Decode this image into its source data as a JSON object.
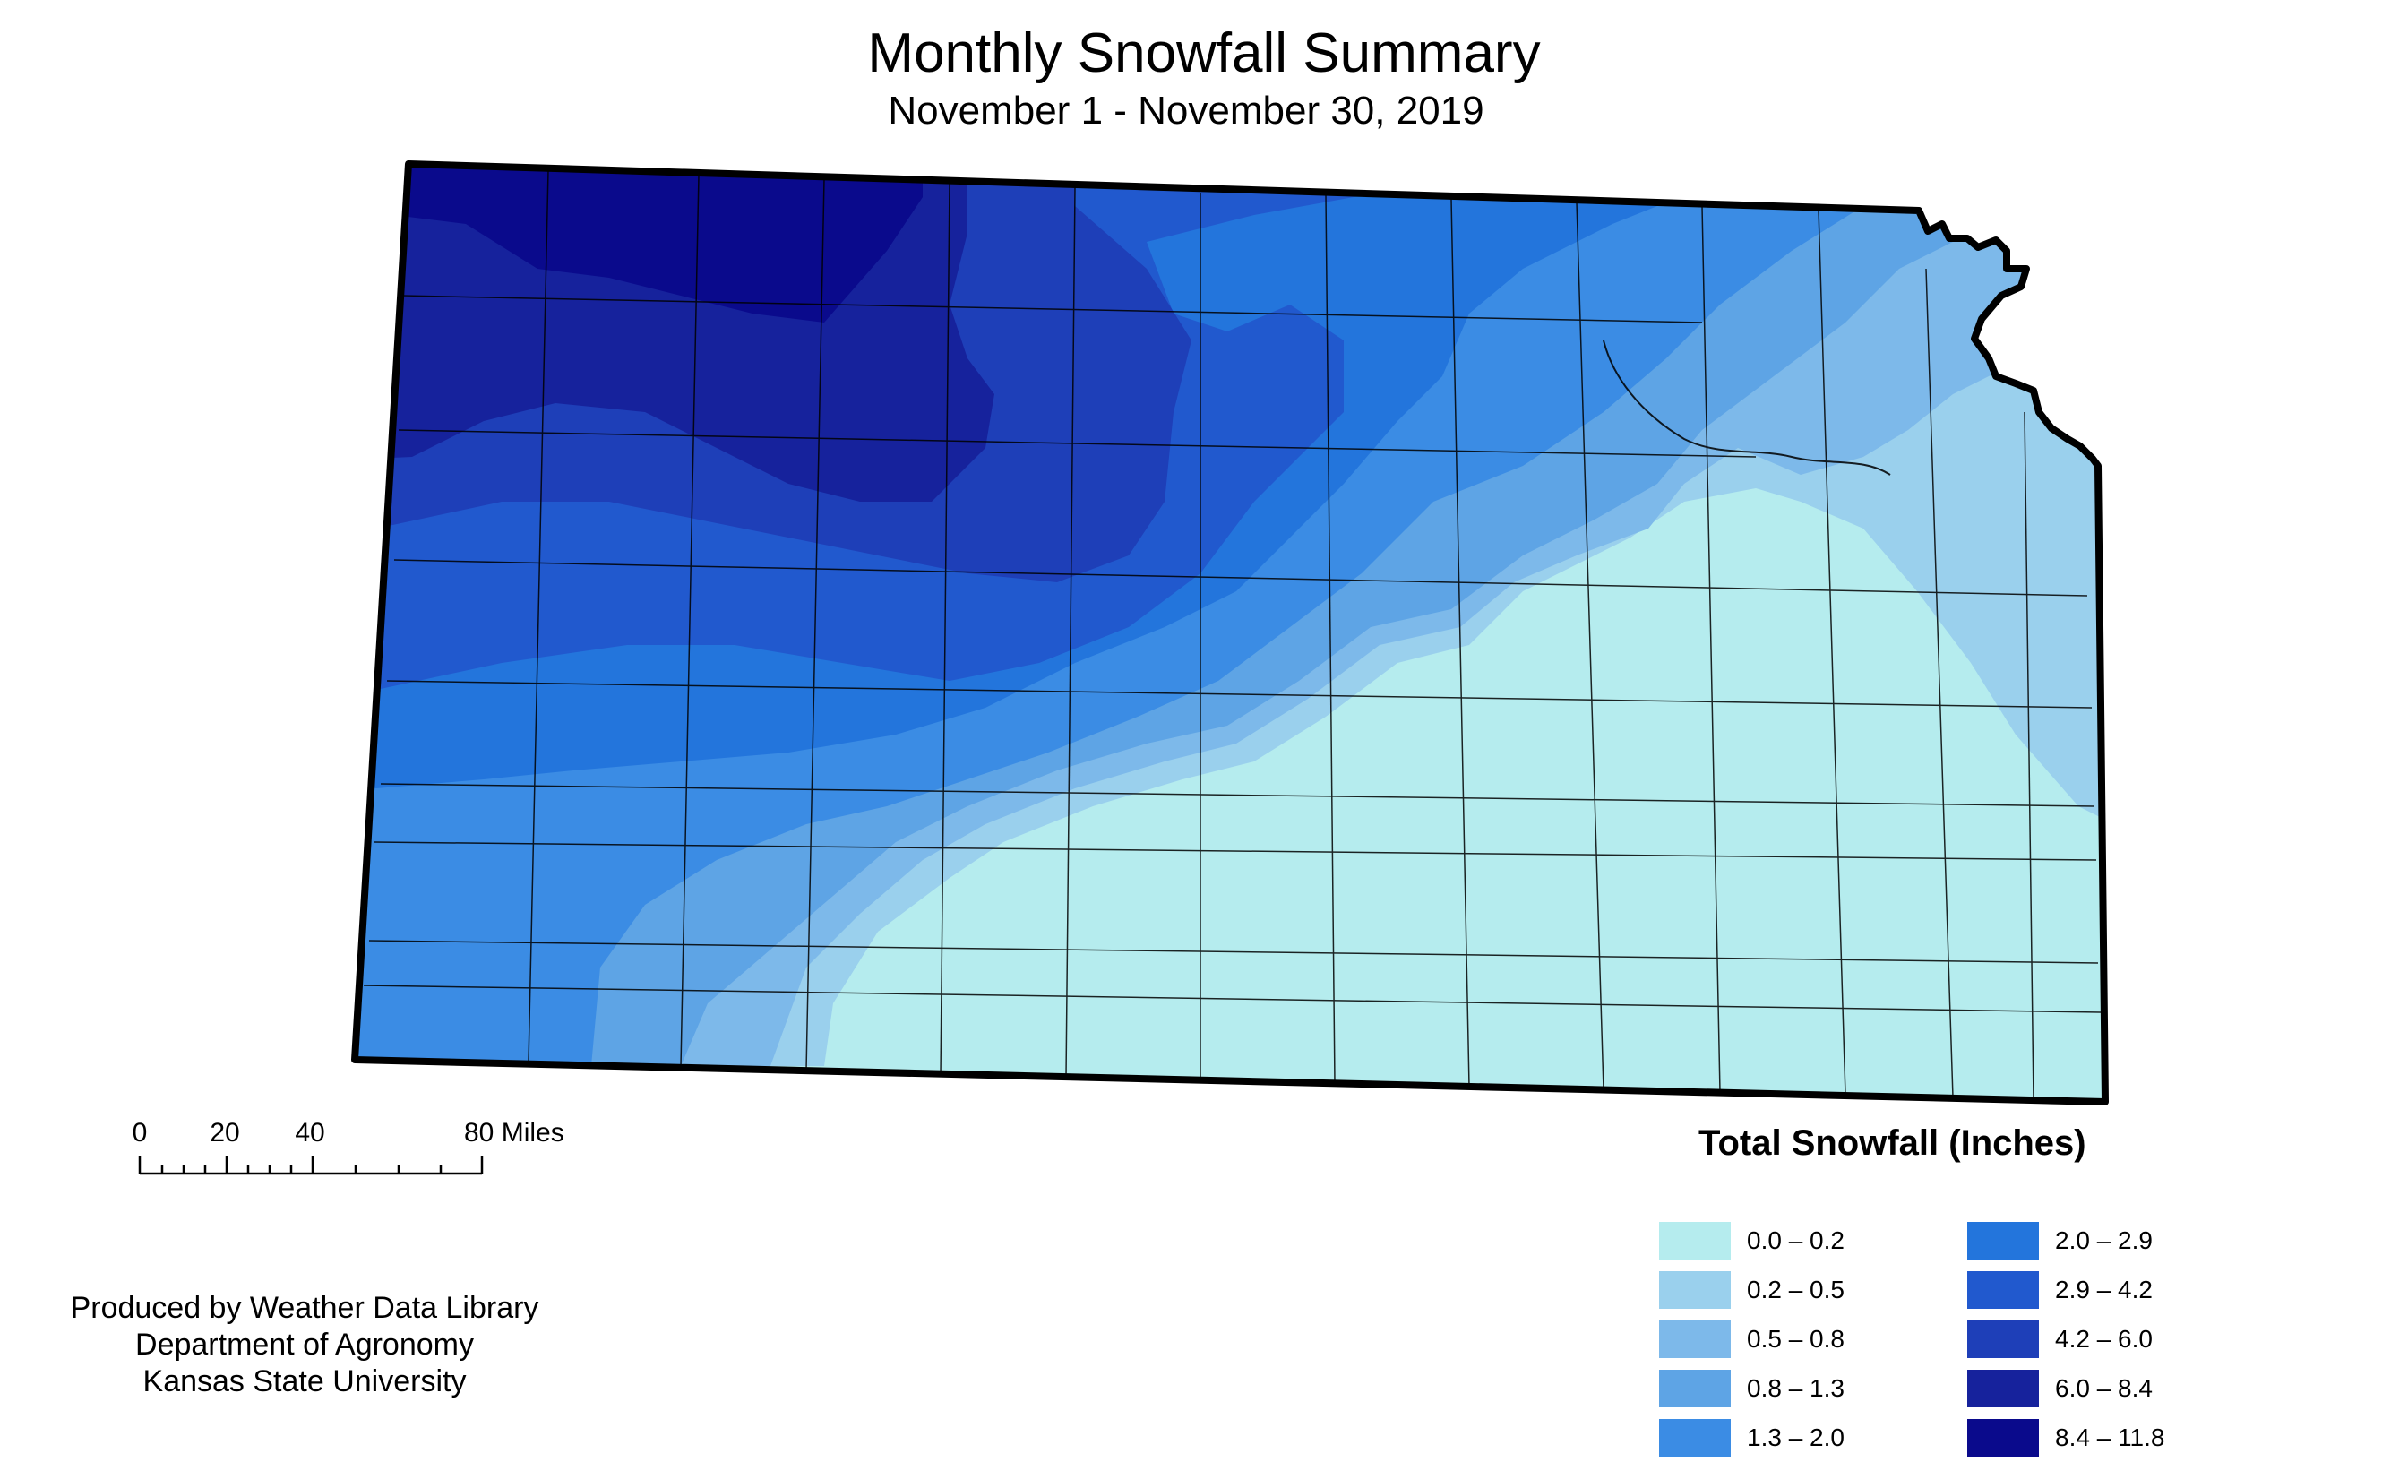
{
  "title": "Monthly Snowfall Summary",
  "subtitle": "November 1 - November 30, 2019",
  "scale_bar": {
    "labels": [
      "0",
      "20",
      "40",
      "80 Miles"
    ]
  },
  "credits": [
    "Produced by Weather Data Library",
    "Department of Agronomy",
    "Kansas State University"
  ],
  "legend": {
    "title": "Total Snowfall (Inches)",
    "items": [
      {
        "label": "0.0 – 0.2",
        "color": "#b5ecee"
      },
      {
        "label": "0.2 – 0.5",
        "color": "#9ad0ed"
      },
      {
        "label": "0.5 – 0.8",
        "color": "#7db9ea"
      },
      {
        "label": "0.8 – 1.3",
        "color": "#5ea4e5"
      },
      {
        "label": "1.3 – 2.0",
        "color": "#3b8ce4"
      },
      {
        "label": "2.0 – 2.9",
        "color": "#2375dc"
      },
      {
        "label": "2.9 – 4.2",
        "color": "#2159ce"
      },
      {
        "label": "4.2 – 6.0",
        "color": "#1e3fb8"
      },
      {
        "label": "6.0 – 8.4",
        "color": "#16229c"
      },
      {
        "label": "8.4 – 11.8",
        "color": "#0a0a8c"
      }
    ]
  }
}
